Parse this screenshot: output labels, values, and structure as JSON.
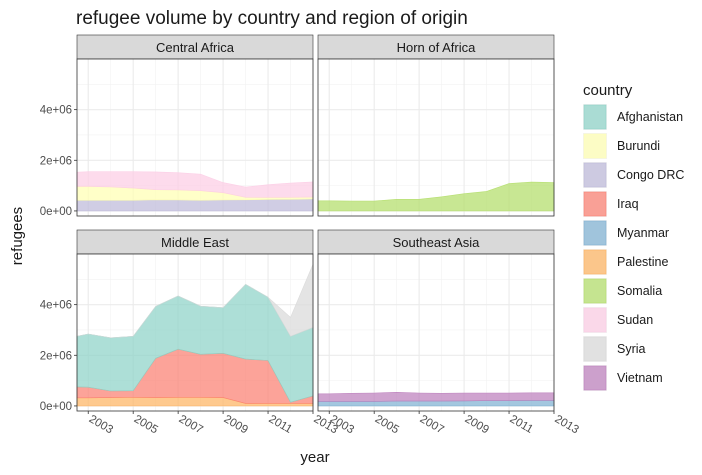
{
  "chart_data": {
    "type": "area",
    "title": "refugee volume by country and region of origin",
    "xlabel": "year",
    "ylabel": "refugees",
    "xlim": [
      2002.5,
      2013
    ],
    "ylim": [
      -200000,
      6000000
    ],
    "x_ticks": [
      2003,
      2005,
      2007,
      2009,
      2011,
      2013
    ],
    "x_tick_labels": [
      "2003",
      "2005",
      "2007",
      "2009",
      "2011",
      "2013"
    ],
    "y_ticks": [
      0,
      2000000,
      4000000
    ],
    "y_tick_labels": [
      "0e+00",
      "2e+06",
      "4e+06"
    ],
    "legend": {
      "title": "country",
      "position": "right",
      "entries": [
        {
          "name": "Afghanistan",
          "color": "#8dd3c7"
        },
        {
          "name": "Burundi",
          "color": "#ffffb3"
        },
        {
          "name": "Congo DRC",
          "color": "#bebada"
        },
        {
          "name": "Iraq",
          "color": "#fb8072"
        },
        {
          "name": "Myanmar",
          "color": "#80b1d3"
        },
        {
          "name": "Palestine",
          "color": "#fdb462"
        },
        {
          "name": "Somalia",
          "color": "#b3de69"
        },
        {
          "name": "Sudan",
          "color": "#fccde5"
        },
        {
          "name": "Syria",
          "color": "#d9d9d9"
        },
        {
          "name": "Vietnam",
          "color": "#bc80bd"
        }
      ]
    },
    "x": [
      2002.5,
      2003,
      2004,
      2005,
      2006,
      2007,
      2008,
      2009,
      2010,
      2011,
      2012,
      2013
    ],
    "panels": [
      {
        "region": "Central Africa",
        "stack": [
          {
            "country": "Congo DRC",
            "values": [
              420000,
              420000,
              420000,
              420000,
              440000,
              430000,
              420000,
              430000,
              440000,
              450000,
              460000,
              470000
            ]
          },
          {
            "country": "Burundi",
            "values": [
              550000,
              550000,
              530000,
              480000,
              400000,
              400000,
              380000,
              290000,
              100000,
              85000,
              80000,
              75000
            ]
          },
          {
            "country": "Sudan",
            "values": [
              560000,
              580000,
              600000,
              650000,
              700000,
              680000,
              650000,
              400000,
              400000,
              500000,
              560000,
              600000
            ]
          }
        ]
      },
      {
        "region": "Horn of Africa",
        "stack": [
          {
            "country": "Somalia",
            "values": [
              400000,
              400000,
              390000,
              390000,
              460000,
              460000,
              560000,
              680000,
              770000,
              1080000,
              1140000,
              1120000
            ]
          }
        ]
      },
      {
        "region": "Middle East",
        "stack": [
          {
            "country": "Palestine",
            "values": [
              320000,
              320000,
              330000,
              340000,
              330000,
              340000,
              340000,
              330000,
              100000,
              95000,
              95000,
              96000
            ]
          },
          {
            "country": "Iraq",
            "values": [
              430000,
              420000,
              260000,
              260000,
              1550000,
              1900000,
              1700000,
              1750000,
              1750000,
              1700000,
              50000,
              300000
            ]
          },
          {
            "country": "Afghanistan",
            "values": [
              2000000,
              2100000,
              2100000,
              2150000,
              2050000,
              2100000,
              1900000,
              1800000,
              2950000,
              2500000,
              2600000,
              2700000
            ]
          },
          {
            "country": "Syria",
            "values": [
              0,
              0,
              0,
              0,
              0,
              0,
              0,
              0,
              0,
              0,
              750000,
              2500000
            ]
          }
        ]
      },
      {
        "region": "Southeast Asia",
        "stack": [
          {
            "country": "Myanmar",
            "values": [
              180000,
              180000,
              180000,
              180000,
              190000,
              190000,
              190000,
              200000,
              210000,
              210000,
              220000,
              220000
            ]
          },
          {
            "country": "Vietnam",
            "values": [
              300000,
              300000,
              320000,
              330000,
              350000,
              320000,
              310000,
              310000,
              300000,
              300000,
              300000,
              300000
            ]
          }
        ]
      }
    ]
  }
}
